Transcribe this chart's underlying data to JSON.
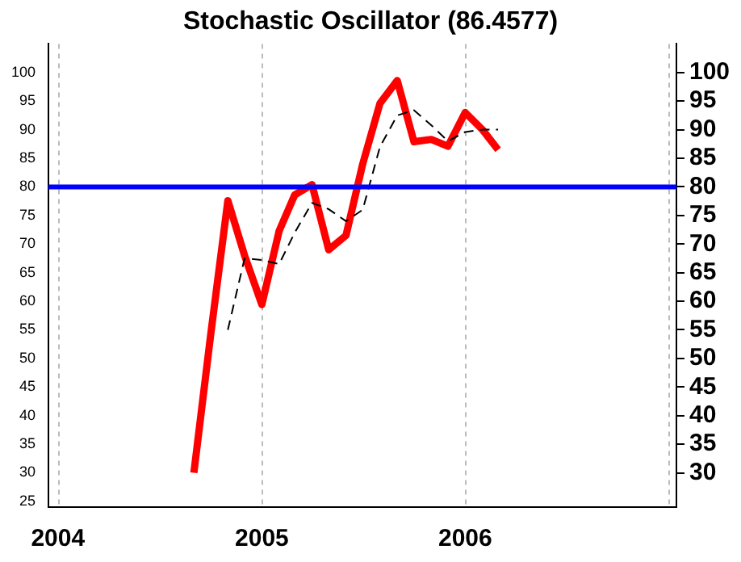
{
  "chart_data": {
    "type": "line",
    "title": "Stochastic Oscillator (86.4577)",
    "x": [
      "2004-09",
      "2004-10",
      "2004-11",
      "2004-12",
      "2005-01",
      "2005-02",
      "2005-03",
      "2005-04",
      "2005-05",
      "2005-06",
      "2005-07",
      "2005-08",
      "2005-09",
      "2005-10",
      "2005-11",
      "2005-12",
      "2006-01",
      "2006-02",
      "2006-03"
    ],
    "series": [
      {
        "color": "#ff0000",
        "values": [
          30,
          54,
          77.6,
          68,
          59.4,
          72.3,
          78.6,
          80.4,
          69,
          71.5,
          84,
          94.6,
          98.6,
          87.9,
          88.3,
          87.1,
          93,
          90,
          86.5
        ]
      },
      {
        "color": "#000000",
        "line_style": "dashed",
        "values": [
          null,
          null,
          55,
          67.5,
          67.2,
          66.5,
          72,
          77.2,
          76.1,
          74,
          76,
          87,
          92.5,
          93.4,
          90.8,
          88,
          89.6,
          90,
          90
        ]
      }
    ],
    "xlim": [
      "2003-12-15",
      "2007-01-15"
    ],
    "xticks": [
      {
        "value": "2004",
        "label": "2004"
      },
      {
        "value": "2005",
        "label": "2005"
      },
      {
        "value": "2006",
        "label": "2006"
      },
      {
        "value": "2007",
        "label": null
      }
    ],
    "ylim": [
      24,
      105
    ],
    "yticks": [
      25,
      30,
      35,
      40,
      45,
      50,
      55,
      60,
      65,
      70,
      75,
      80,
      85,
      90,
      95,
      100
    ],
    "y2lim": [
      24,
      105
    ],
    "y2ticks": [
      30,
      35,
      40,
      45,
      50,
      55,
      60,
      65,
      70,
      75,
      80,
      85,
      90,
      95,
      100
    ],
    "ref_lines": [
      {
        "axis": "y",
        "value": 80,
        "color": "#0000ff"
      }
    ],
    "grid": "x",
    "legend": false,
    "marker": "none"
  }
}
